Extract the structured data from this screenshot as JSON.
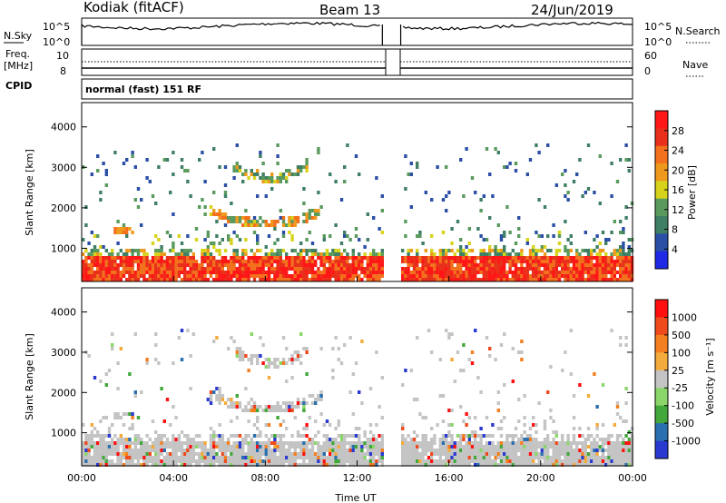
{
  "header": {
    "station": "Kodiak (fitACF)",
    "beam": "Beam 13",
    "date": "24/Jun/2019"
  },
  "panels": {
    "nsky_label": "N.Sky",
    "nsky_ticks": [
      "10^5",
      "10^0"
    ],
    "nsearch_label": "N.Search",
    "freq_label_1": "Freq.",
    "freq_label_2": "[MHz]",
    "freq_ticks": [
      "10",
      "8"
    ],
    "nave_label": "Nave",
    "nave_ticks": [
      "60",
      "0"
    ],
    "cpid_label": "CPID",
    "mode_text": "normal (fast) 151 RF"
  },
  "colors": {
    "power": [
      "#1f29e6",
      "#2c4fa6",
      "#3f7f64",
      "#5a9a5e",
      "#d7d31b",
      "#f09a1d",
      "#f3701d",
      "#e8301a",
      "#ff1717"
    ],
    "velocity": [
      "#ff0f0f",
      "#ef4a1c",
      "#f57e1f",
      "#f3ab3b",
      "#c4c4c4",
      "#8bd66a",
      "#42a83b",
      "#2a6fb0",
      "#2a3ad1"
    ],
    "gap": "#ffffff"
  },
  "chart_data": [
    {
      "type": "heatmap",
      "name": "power",
      "xlabel": "",
      "ylabel": "Slant Range [km]",
      "x_range_hours": [
        0,
        24
      ],
      "y_range_km": [
        180,
        4600
      ],
      "yticks": [
        "1000",
        "2000",
        "3000",
        "4000"
      ],
      "yticks_values": [
        1000,
        2000,
        3000,
        4000
      ],
      "xticks_values": [
        0,
        4,
        8,
        12,
        16,
        20,
        24
      ],
      "data_gap_hours": [
        13.1,
        13.9
      ],
      "colorbar": {
        "label": "Power [dB]",
        "ticks": [
          "28",
          "24",
          "20",
          "16",
          "12",
          "8",
          "4"
        ],
        "range": [
          0,
          32
        ]
      }
    },
    {
      "type": "heatmap",
      "name": "velocity",
      "xlabel": "Time UT",
      "ylabel": "Slant Range [km]",
      "x_range_hours": [
        0,
        24
      ],
      "y_range_km": [
        180,
        4600
      ],
      "yticks": [
        "1000",
        "2000",
        "3000",
        "4000"
      ],
      "yticks_values": [
        1000,
        2000,
        3000,
        4000
      ],
      "xticks": [
        "00:00",
        "04:00",
        "08:00",
        "12:00",
        "16:00",
        "20:00",
        "00:00"
      ],
      "xticks_values": [
        0,
        4,
        8,
        12,
        16,
        20,
        24
      ],
      "data_gap_hours": [
        13.1,
        13.9
      ],
      "colorbar": {
        "label": "Velocity [m s⁻¹]",
        "ticks": [
          "1000",
          "500",
          "100",
          "25",
          "-25",
          "-100",
          "-500",
          "-1000"
        ]
      }
    }
  ]
}
